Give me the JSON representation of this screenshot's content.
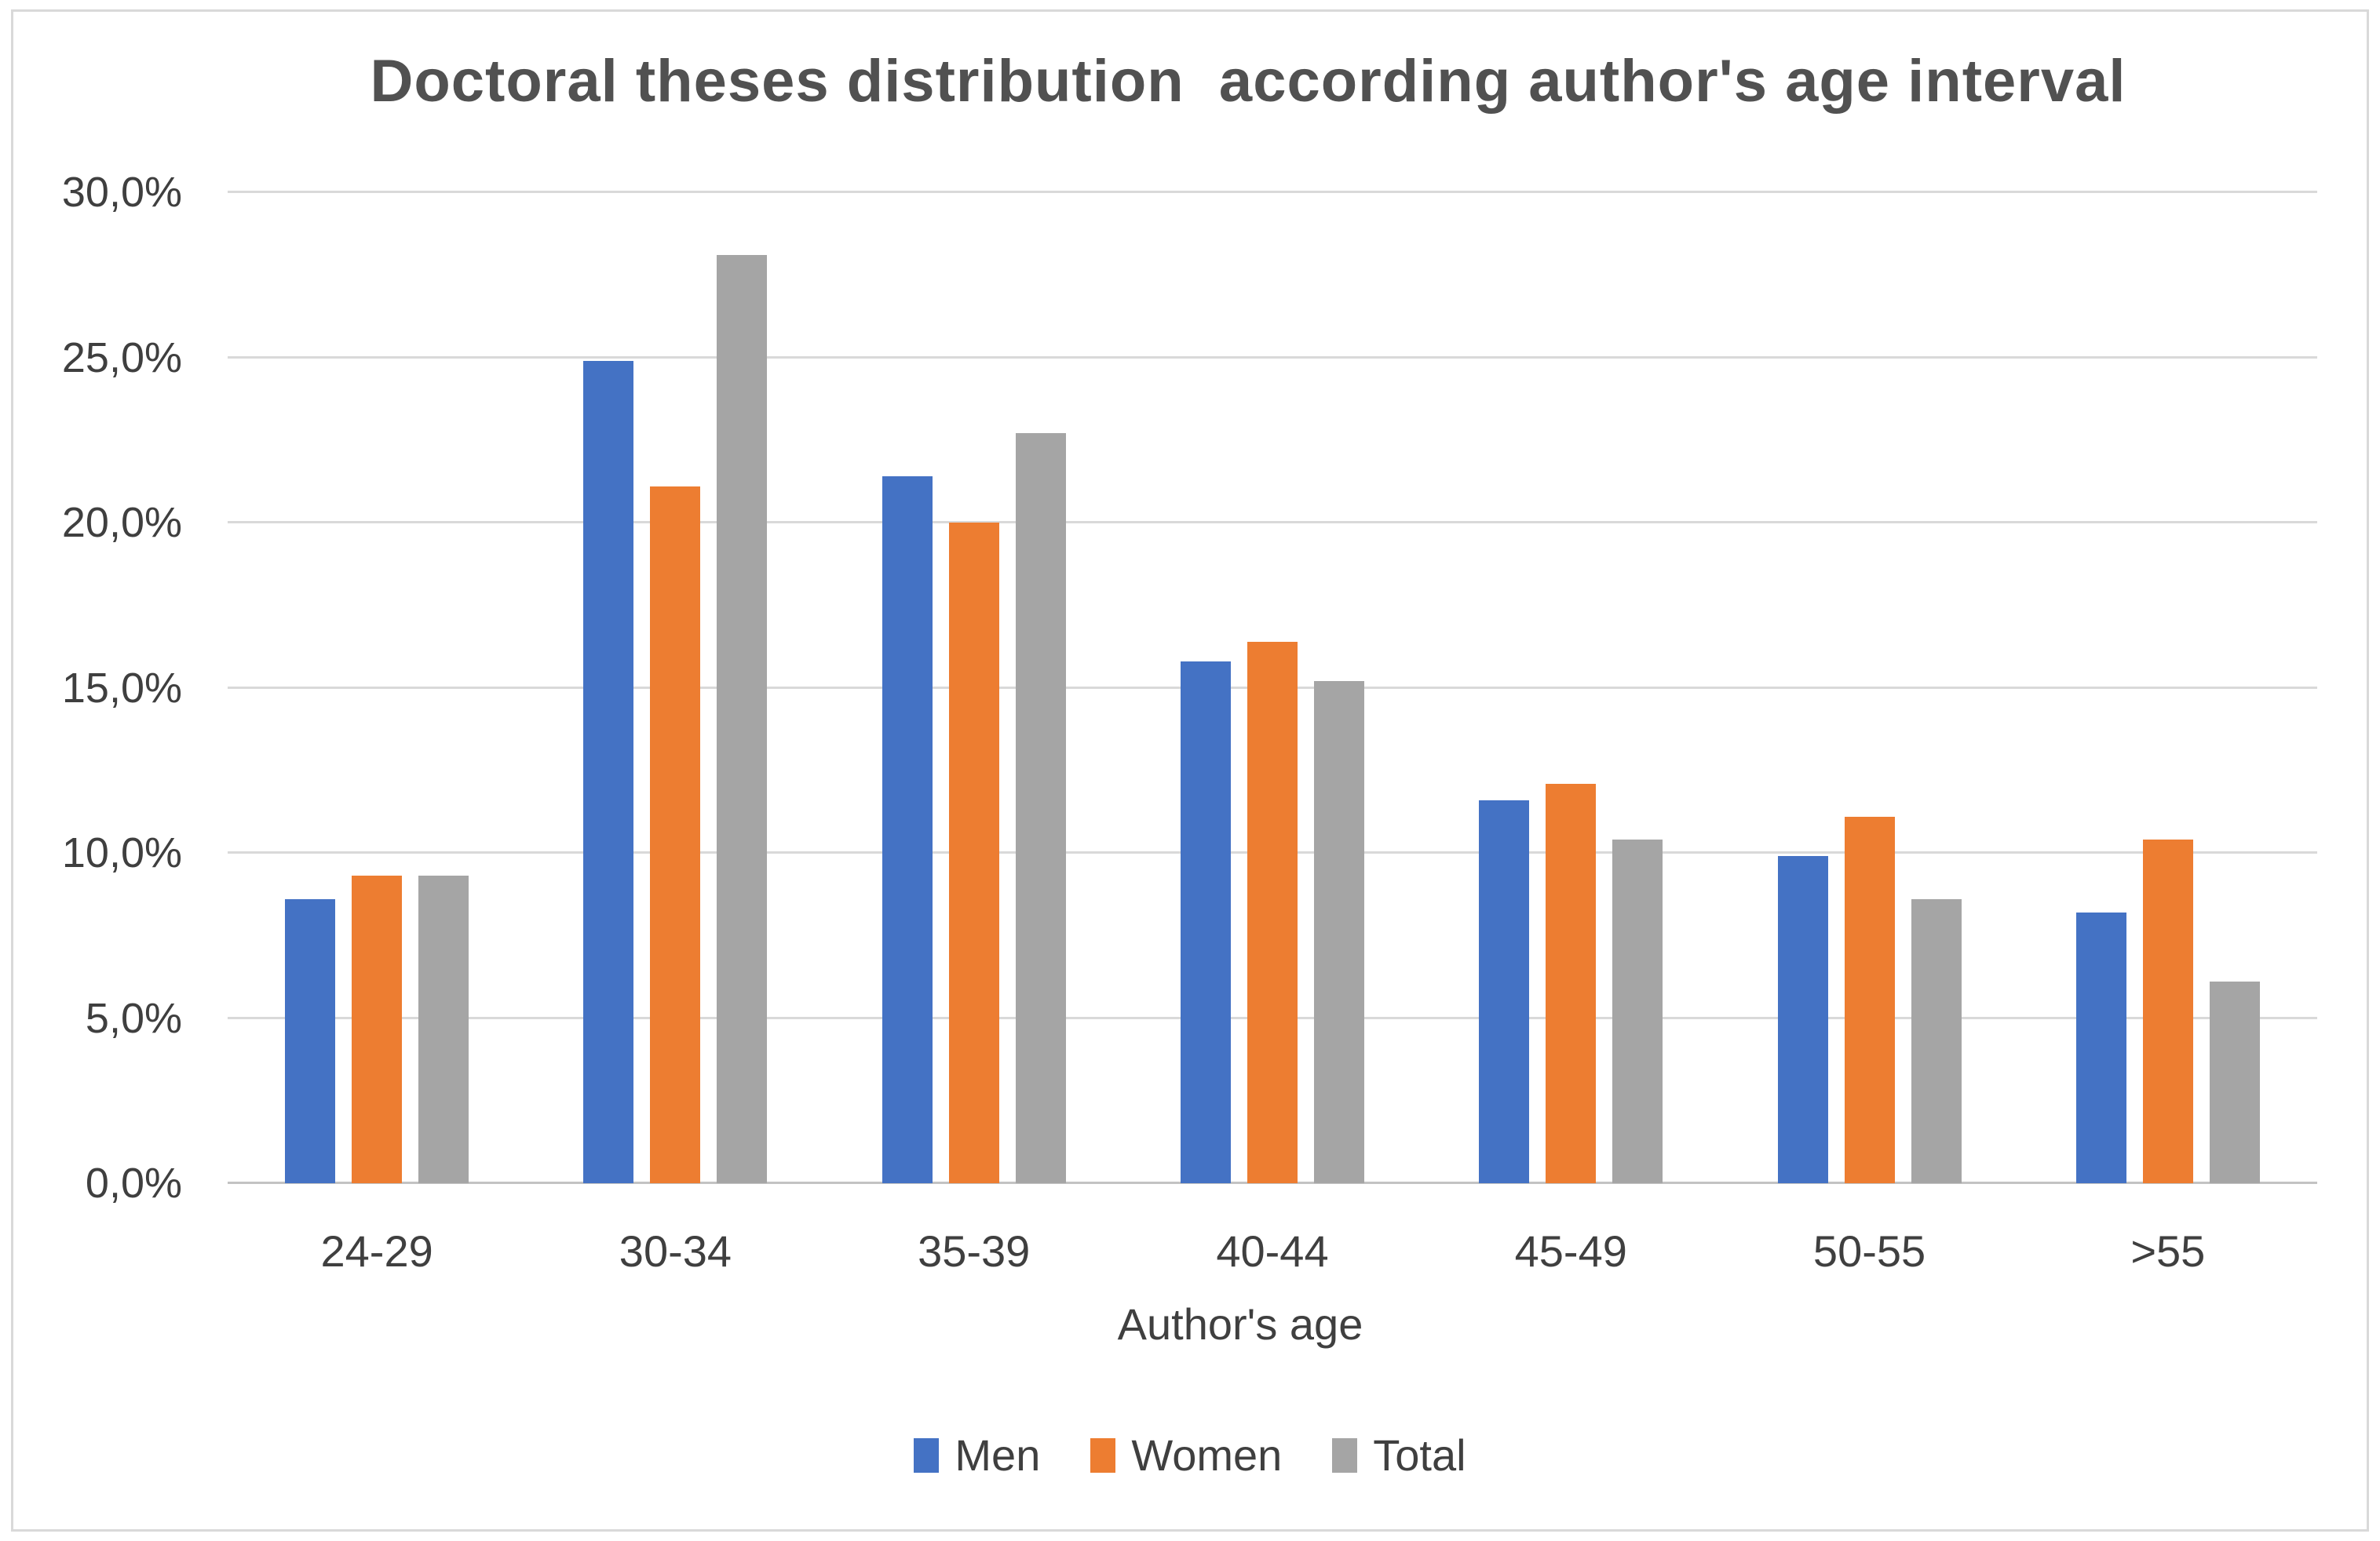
{
  "chart_data": {
    "type": "bar",
    "title": "Doctoral theses distribution  according author's age interval",
    "categories": [
      "24-29",
      "30-34",
      "35-39",
      "40-44",
      "45-49",
      "50-55",
      ">55"
    ],
    "series": [
      {
        "name": "Men",
        "color": "#4472C4",
        "values": [
          8.6,
          24.9,
          21.4,
          15.8,
          11.6,
          9.9,
          8.2
        ]
      },
      {
        "name": "Women",
        "color": "#ED7D31",
        "values": [
          9.3,
          21.1,
          20.0,
          16.4,
          12.1,
          11.1,
          10.4
        ]
      },
      {
        "name": "Total",
        "color": "#A5A5A5",
        "values": [
          9.3,
          28.1,
          22.7,
          15.2,
          10.4,
          8.6,
          6.1
        ]
      }
    ],
    "xlabel": "Author's age",
    "ylabel": "",
    "ylim": [
      0,
      30
    ],
    "yticks": [
      {
        "value": 0,
        "label": "0,0%"
      },
      {
        "value": 5,
        "label": "5,0%"
      },
      {
        "value": 10,
        "label": "10,0%"
      },
      {
        "value": 15,
        "label": "15,0%"
      },
      {
        "value": 20,
        "label": "20,0%"
      },
      {
        "value": 25,
        "label": "25,0%"
      },
      {
        "value": 30,
        "label": "30,0%"
      }
    ],
    "grid": true,
    "legend_position": "bottom"
  },
  "style": {
    "gridline_color": "#d9d9d9",
    "axis_line_color": "#c3c3c3",
    "title_color": "#515151",
    "label_color": "#3f3f3f"
  }
}
